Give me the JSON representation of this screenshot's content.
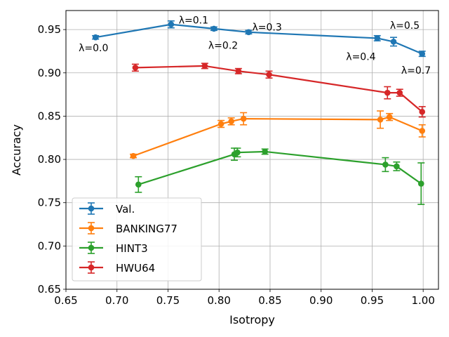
{
  "chart_data": {
    "type": "line",
    "title": "",
    "xlabel": "Isotropy",
    "ylabel": "Accuracy",
    "xlim": [
      0.65,
      1.015
    ],
    "ylim": [
      0.65,
      0.972
    ],
    "xticks": [
      "0.65",
      "0.70",
      "0.75",
      "0.80",
      "0.85",
      "0.90",
      "0.95",
      "1.00"
    ],
    "yticks": [
      "0.65",
      "0.70",
      "0.75",
      "0.80",
      "0.85",
      "0.90",
      "0.95"
    ],
    "grid": true,
    "legend_position": "lower-left",
    "series": [
      {
        "name": "Val.",
        "color": "#1f77b4",
        "points": [
          {
            "x": 0.679,
            "y": 0.941,
            "err": 0.002
          },
          {
            "x": 0.753,
            "y": 0.956,
            "err": 0.004
          },
          {
            "x": 0.795,
            "y": 0.951,
            "err": 0.002
          },
          {
            "x": 0.829,
            "y": 0.947,
            "err": 0.002
          },
          {
            "x": 0.955,
            "y": 0.94,
            "err": 0.003
          },
          {
            "x": 0.971,
            "y": 0.936,
            "err": 0.005
          },
          {
            "x": 0.999,
            "y": 0.922,
            "err": 0.003
          }
        ]
      },
      {
        "name": "BANKING77",
        "color": "#ff7f0e",
        "points": [
          {
            "x": 0.716,
            "y": 0.804,
            "err": 0.002
          },
          {
            "x": 0.802,
            "y": 0.841,
            "err": 0.004
          },
          {
            "x": 0.812,
            "y": 0.844,
            "err": 0.004
          },
          {
            "x": 0.824,
            "y": 0.847,
            "err": 0.007
          },
          {
            "x": 0.958,
            "y": 0.846,
            "err": 0.01
          },
          {
            "x": 0.967,
            "y": 0.849,
            "err": 0.004
          },
          {
            "x": 0.999,
            "y": 0.833,
            "err": 0.007
          }
        ]
      },
      {
        "name": "HINT3",
        "color": "#2ca02c",
        "points": [
          {
            "x": 0.721,
            "y": 0.771,
            "err": 0.009
          },
          {
            "x": 0.815,
            "y": 0.806,
            "err": 0.007
          },
          {
            "x": 0.818,
            "y": 0.808,
            "err": 0.005
          },
          {
            "x": 0.845,
            "y": 0.809,
            "err": 0.003
          },
          {
            "x": 0.963,
            "y": 0.794,
            "err": 0.008
          },
          {
            "x": 0.974,
            "y": 0.792,
            "err": 0.005
          },
          {
            "x": 0.998,
            "y": 0.772,
            "err": 0.024
          }
        ]
      },
      {
        "name": "HWU64",
        "color": "#d62728",
        "points": [
          {
            "x": 0.718,
            "y": 0.906,
            "err": 0.004
          },
          {
            "x": 0.786,
            "y": 0.908,
            "err": 0.003
          },
          {
            "x": 0.819,
            "y": 0.902,
            "err": 0.003
          },
          {
            "x": 0.849,
            "y": 0.898,
            "err": 0.004
          },
          {
            "x": 0.965,
            "y": 0.877,
            "err": 0.007
          },
          {
            "x": 0.977,
            "y": 0.877,
            "err": 0.004
          },
          {
            "x": 0.999,
            "y": 0.855,
            "err": 0.006
          }
        ]
      }
    ],
    "annotations": [
      {
        "text": "λ=0.0",
        "x": 0.677,
        "y": 0.929
      },
      {
        "text": "λ=0.1",
        "x": 0.775,
        "y": 0.961
      },
      {
        "text": "λ=0.2",
        "x": 0.804,
        "y": 0.932
      },
      {
        "text": "λ=0.3",
        "x": 0.847,
        "y": 0.953
      },
      {
        "text": "λ=0.4",
        "x": 0.939,
        "y": 0.919
      },
      {
        "text": "λ=0.5",
        "x": 0.982,
        "y": 0.955
      },
      {
        "text": "λ=0.7",
        "x": 0.993,
        "y": 0.903
      }
    ]
  }
}
